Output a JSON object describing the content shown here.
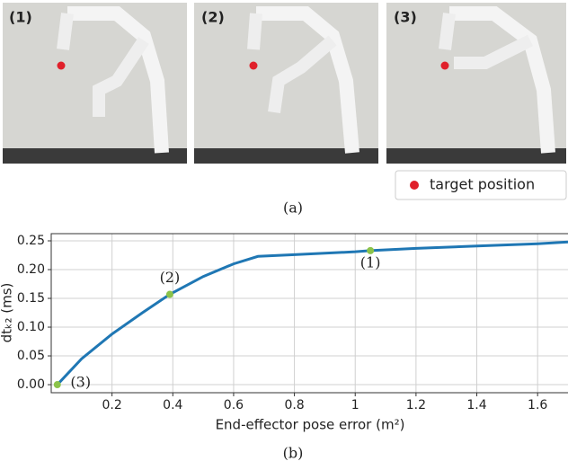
{
  "panels": [
    "(1)",
    "(2)",
    "(3)"
  ],
  "legend": "target position",
  "caption_a": "(a)",
  "caption_b": "(b)",
  "chart_data": {
    "type": "line",
    "x_label": "End-effector pose error (m²)",
    "y_label": "dtₖ₂ (ms)",
    "x": [
      0.02,
      0.1,
      0.2,
      0.3,
      0.39,
      0.5,
      0.6,
      0.68,
      0.8,
      1.0,
      1.05,
      1.2,
      1.4,
      1.6,
      1.7
    ],
    "values": [
      0.0,
      0.045,
      0.088,
      0.125,
      0.157,
      0.188,
      0.21,
      0.223,
      0.226,
      0.231,
      0.233,
      0.237,
      0.241,
      0.245,
      0.248
    ],
    "color": "#1f77b4",
    "highlights": [
      {
        "label": "(1)",
        "x": 1.05,
        "y": 0.233
      },
      {
        "label": "(2)",
        "x": 0.39,
        "y": 0.157
      },
      {
        "label": "(3)",
        "x": 0.02,
        "y": 0.0
      }
    ],
    "highlight_color": "#8bc34a",
    "xlim": [
      0,
      1.7
    ],
    "ylim": [
      -0.014,
      0.2625
    ],
    "xticks": [
      0.2,
      0.4,
      0.6,
      0.8,
      1.0,
      1.2,
      1.4,
      1.6
    ],
    "yticks": [
      {
        "value": 0,
        "label": "0.00"
      },
      {
        "value": 0.05,
        "label": "0.05"
      },
      {
        "value": 0.1,
        "label": "0.10"
      },
      {
        "value": 0.15,
        "label": "0.15"
      },
      {
        "value": 0.2,
        "label": "0.20"
      },
      {
        "value": 0.25,
        "label": "0.25"
      }
    ],
    "grid": true
  }
}
